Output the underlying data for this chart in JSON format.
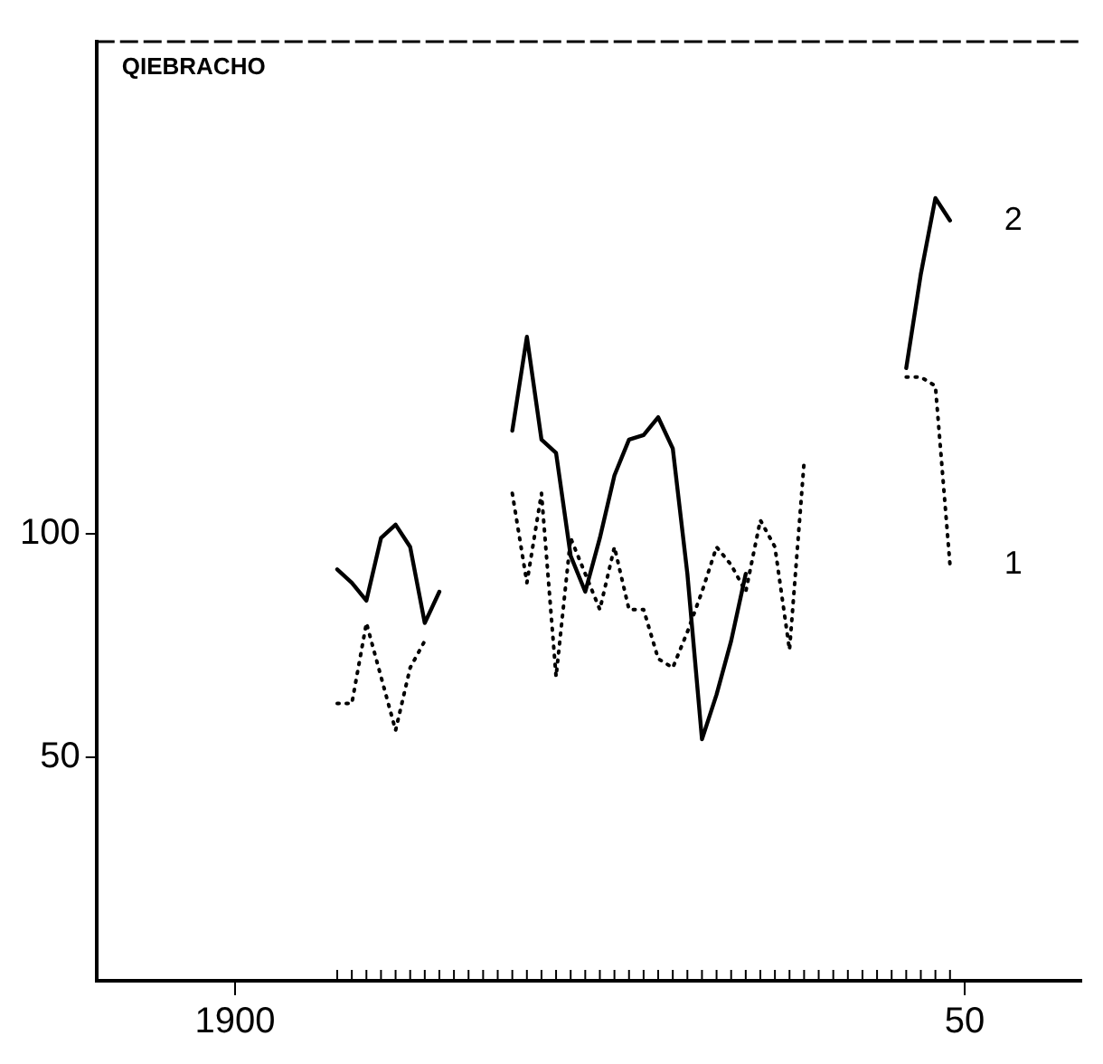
{
  "chart_data": {
    "type": "line",
    "title": "QIEBRACHO",
    "x": [
      1907,
      1908,
      1909,
      1910,
      1911,
      1912,
      1913,
      1914,
      1915,
      1916,
      1917,
      1918,
      1919,
      1920,
      1921,
      1922,
      1923,
      1924,
      1925,
      1926,
      1927,
      1928,
      1929,
      1930,
      1931,
      1932,
      1933,
      1934,
      1935,
      1936,
      1937,
      1938,
      1939,
      1940,
      1941,
      1942,
      1943,
      1944,
      1945,
      1946,
      1947,
      1948,
      1949
    ],
    "series": [
      {
        "name": "2",
        "color": "#000000",
        "line_style": "solid",
        "values": [
          92,
          89,
          85,
          99,
          102,
          97,
          80,
          87,
          null,
          null,
          null,
          null,
          123,
          144,
          121,
          118,
          95,
          87,
          99,
          113,
          121,
          122,
          126,
          119,
          91,
          54,
          64,
          76,
          91,
          null,
          null,
          null,
          null,
          null,
          null,
          null,
          null,
          null,
          null,
          137,
          158,
          175,
          170
        ]
      },
      {
        "name": "1",
        "color": "#000000",
        "line_style": "dotted",
        "values": [
          62,
          62,
          80,
          68,
          56,
          70,
          76,
          null,
          null,
          null,
          null,
          null,
          109,
          89,
          109,
          68,
          99,
          91,
          83,
          97,
          83,
          83,
          72,
          70,
          78,
          87,
          97,
          93,
          87,
          103,
          97,
          74,
          116,
          null,
          null,
          null,
          null,
          null,
          null,
          135,
          135,
          133,
          93
        ]
      }
    ],
    "xlim": [
      1890.5,
      1958
    ],
    "xticks": [
      {
        "value": 1900,
        "label": "1900"
      },
      {
        "value": 1950,
        "label": "50"
      }
    ],
    "ylim": [
      0,
      210
    ],
    "yticks": [
      50,
      100
    ],
    "grid": false,
    "legend": false,
    "marker": "none"
  }
}
